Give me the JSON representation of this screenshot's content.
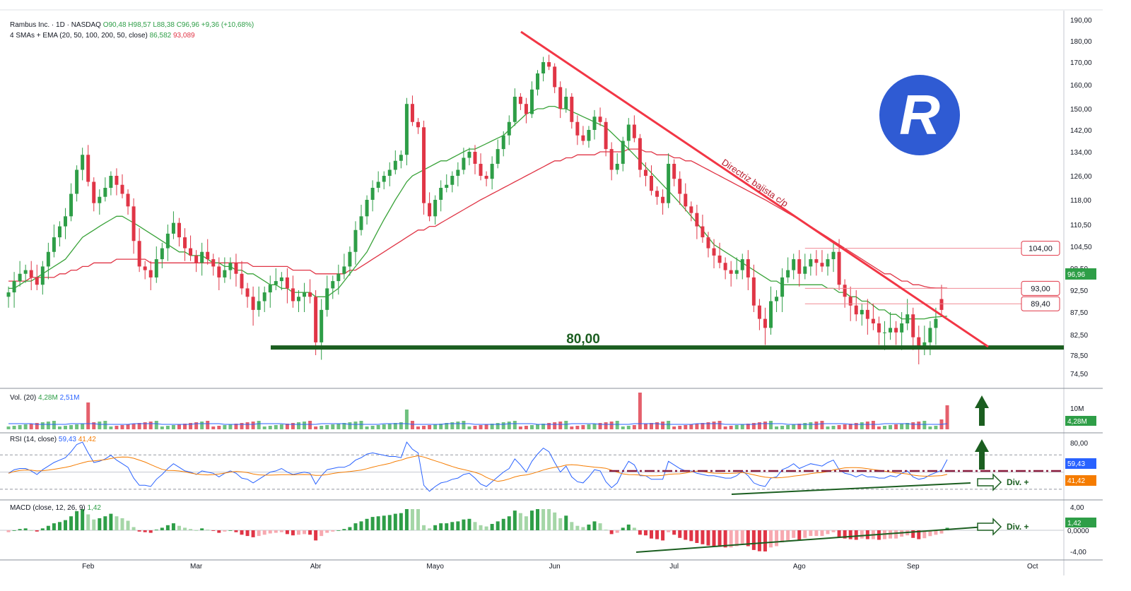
{
  "header": {
    "symbol_line": "Rambus Inc. · 1D · NASDAQ",
    "ohlc": {
      "o": "O90,48",
      "h": "H98,57",
      "l": "L88,38",
      "c": "C96,96",
      "chg": "+9,36 (+10,68%)"
    },
    "ma_label": "4 SMAs + EMA (20, 50, 100, 200, 50, close)",
    "ma_values": [
      "86,582",
      "93,089"
    ]
  },
  "logo": {
    "letter": "R",
    "color": "#2f5bd3"
  },
  "price_axis": {
    "ticks": [
      "190,00",
      "180,00",
      "170,00",
      "160,00",
      "150,00",
      "142,00",
      "134,00",
      "126,00",
      "118,00",
      "110,50",
      "104,50",
      "98,50",
      "92,50",
      "87,50",
      "82,50",
      "78,50",
      "74,50"
    ],
    "ytick_values": [
      190,
      180,
      170,
      160,
      150,
      142,
      134,
      126,
      118,
      110.5,
      104.5,
      98.5,
      92.5,
      87.5,
      82.5,
      78.5,
      74.5
    ],
    "last_price_label": "96,96"
  },
  "x_axis": {
    "labels": [
      "Feb",
      "Mar",
      "Abr",
      "Mayo",
      "Jun",
      "Jul",
      "Ago",
      "Sep",
      "Oct"
    ],
    "label_index": [
      14,
      33,
      54,
      75,
      96,
      117,
      139,
      159,
      180
    ]
  },
  "levels": [
    {
      "label": "104,00",
      "value": 104.0
    },
    {
      "label": "93,00",
      "value": 93.0
    },
    {
      "label": "89,40",
      "value": 89.4
    }
  ],
  "annotations": {
    "support_label": "80,00",
    "support_value": 80.0,
    "trendline_label": "Directriz bajista c/p",
    "rsi_div_label": "Div. +",
    "macd_div_label": "Div. +"
  },
  "volume_panel": {
    "title": "Vol. (20)",
    "v1": "4,28M",
    "v2": "2,51M",
    "axis_label": "10M",
    "last_label": "4,28M"
  },
  "rsi_panel": {
    "title": "RSI (14, close)",
    "v1": "59,43",
    "v2": "41,42",
    "axis_label": "80,00",
    "last_rsi": "59,43",
    "last_ma": "41,42"
  },
  "macd_panel": {
    "title": "MACD (close, 12, 26, 9)",
    "v1": "1,42",
    "axis_labels": [
      "4,00",
      "0,0000",
      "-4,00"
    ],
    "last_label": "1,42"
  },
  "colors": {
    "up": "#2e9e47",
    "down": "#e03546",
    "ema": "#e03546",
    "sma": "#3aa33a",
    "trend": "#f23645",
    "support": "#1b5e20",
    "rsi": "#2962ff",
    "rsi_ma": "#f57c00"
  },
  "chart_data": {
    "type": "candlestick",
    "title": "Rambus Inc. · 1D · NASDAQ",
    "closes": [
      92,
      95,
      97,
      98,
      96,
      94,
      99,
      103,
      107,
      110,
      113,
      120,
      128,
      133,
      124,
      117,
      119,
      122,
      126,
      123,
      120,
      116,
      106,
      99,
      98,
      96,
      101,
      104,
      108,
      111,
      107,
      104,
      102,
      100,
      103,
      101,
      99,
      96,
      98,
      100,
      97,
      93,
      91,
      88,
      90,
      92,
      94,
      95,
      96,
      93,
      90,
      91,
      92,
      91,
      81,
      88,
      93,
      95,
      97,
      99,
      103,
      109,
      113,
      118,
      122,
      124,
      126,
      128,
      131,
      133,
      152,
      145,
      143,
      117,
      113,
      118,
      122,
      123,
      126,
      128,
      132,
      134,
      130,
      126,
      125,
      130,
      135,
      140,
      145,
      155,
      152,
      148,
      158,
      165,
      170,
      168,
      159,
      150,
      155,
      145,
      140,
      138,
      142,
      147,
      145,
      135,
      128,
      130,
      138,
      144,
      139,
      128,
      126,
      121,
      119,
      117,
      130,
      125,
      120,
      116,
      114,
      110,
      107,
      104,
      102,
      100,
      98,
      97,
      98,
      101,
      96,
      89,
      86,
      84,
      90,
      91,
      96,
      98,
      101,
      97,
      99,
      101,
      100,
      99,
      101,
      103,
      94,
      91,
      89,
      87,
      88,
      86,
      85,
      83,
      83,
      84,
      83,
      85,
      87,
      82,
      80,
      81,
      84,
      86,
      88,
      97
    ],
    "opens": [
      91,
      92,
      95,
      97,
      98,
      96,
      94,
      99,
      103,
      107,
      110,
      113,
      120,
      128,
      133,
      124,
      117,
      119,
      122,
      126,
      123,
      120,
      116,
      106,
      99,
      98,
      96,
      101,
      104,
      108,
      111,
      107,
      104,
      102,
      100,
      103,
      101,
      99,
      96,
      98,
      100,
      97,
      93,
      91,
      88,
      90,
      92,
      94,
      95,
      96,
      93,
      90,
      91,
      92,
      91,
      81,
      88,
      93,
      95,
      97,
      99,
      103,
      109,
      113,
      118,
      122,
      124,
      126,
      128,
      131,
      133,
      152,
      145,
      143,
      117,
      113,
      118,
      122,
      123,
      126,
      128,
      132,
      134,
      130,
      126,
      125,
      130,
      135,
      140,
      145,
      155,
      152,
      148,
      158,
      165,
      170,
      168,
      159,
      150,
      155,
      145,
      140,
      138,
      142,
      147,
      145,
      135,
      128,
      130,
      138,
      144,
      139,
      128,
      126,
      121,
      119,
      117,
      130,
      125,
      120,
      116,
      114,
      110,
      107,
      104,
      102,
      100,
      98,
      97,
      98,
      101,
      96,
      89,
      86,
      84,
      90,
      91,
      96,
      98,
      101,
      97,
      99,
      101,
      100,
      99,
      101,
      103,
      94,
      91,
      89,
      87,
      88,
      86,
      85,
      83,
      83,
      84,
      83,
      85,
      87,
      82,
      80,
      81,
      84,
      90.48
    ],
    "ema50": [
      95,
      95,
      95,
      95,
      96,
      96,
      96,
      96,
      96,
      97,
      97,
      98,
      98,
      99,
      99,
      100,
      100,
      100,
      100,
      101,
      101,
      101,
      101,
      101,
      101,
      100,
      100,
      100,
      100,
      100,
      100,
      100,
      100,
      100,
      100,
      100,
      100,
      100,
      100,
      100,
      100,
      100,
      100,
      99,
      99,
      99,
      99,
      99,
      99,
      99,
      98,
      98,
      98,
      98,
      97,
      97,
      97,
      97,
      97,
      97,
      98,
      98,
      99,
      100,
      101,
      102,
      103,
      104,
      105,
      106,
      107,
      108,
      109,
      109,
      110,
      110,
      111,
      112,
      113,
      114,
      115,
      116,
      117,
      118,
      119,
      120,
      121,
      122,
      123,
      124,
      125,
      126,
      127,
      128,
      129,
      130,
      131,
      131,
      132,
      132,
      133,
      133,
      133,
      133,
      134,
      134,
      134,
      134,
      134,
      135,
      135,
      135,
      134,
      134,
      133,
      133,
      133,
      132,
      132,
      131,
      131,
      130,
      129,
      128,
      127,
      126,
      125,
      124,
      123,
      122,
      121,
      120,
      119,
      118,
      117,
      116,
      115,
      114,
      113,
      112,
      111,
      110,
      109,
      108,
      107,
      106,
      105,
      104,
      103,
      102,
      101,
      100,
      99,
      98,
      97,
      97,
      96,
      95,
      95,
      94,
      94,
      93.5,
      93.2,
      93.1,
      93.1,
      93.089
    ],
    "sma20": [
      93,
      93,
      94,
      95,
      95,
      96,
      97,
      98,
      99,
      100,
      101,
      103,
      105,
      107,
      108,
      109,
      110,
      111,
      112,
      113,
      113,
      112,
      111,
      110,
      109,
      108,
      107,
      106,
      105,
      104,
      103,
      103,
      102,
      102,
      102,
      101,
      100,
      100,
      99,
      99,
      98,
      98,
      97,
      97,
      96,
      95,
      94,
      94,
      93,
      93,
      92,
      92,
      92,
      92,
      91,
      91,
      91,
      92,
      93,
      95,
      97,
      99,
      101,
      103,
      106,
      109,
      112,
      115,
      118,
      121,
      124,
      126,
      127,
      128,
      129,
      130,
      131,
      131,
      132,
      133,
      134,
      135,
      135,
      136,
      137,
      138,
      139,
      140,
      142,
      144,
      146,
      148,
      149,
      150,
      150,
      151,
      151,
      150,
      150,
      149,
      148,
      147,
      146,
      145,
      144,
      143,
      141,
      139,
      137,
      135,
      133,
      131,
      129,
      127,
      125,
      123,
      121,
      119,
      117,
      115,
      113,
      111,
      109,
      107,
      105,
      104,
      103,
      102,
      101,
      100,
      99,
      98,
      97,
      96,
      95,
      95,
      94,
      94,
      94,
      94,
      94,
      94,
      94,
      94,
      93,
      93,
      92,
      92,
      91,
      91,
      90,
      90,
      89,
      88,
      88,
      87,
      87,
      86,
      86,
      86,
      86,
      86,
      86.3,
      86.4,
      86.5,
      86.582
    ]
  }
}
